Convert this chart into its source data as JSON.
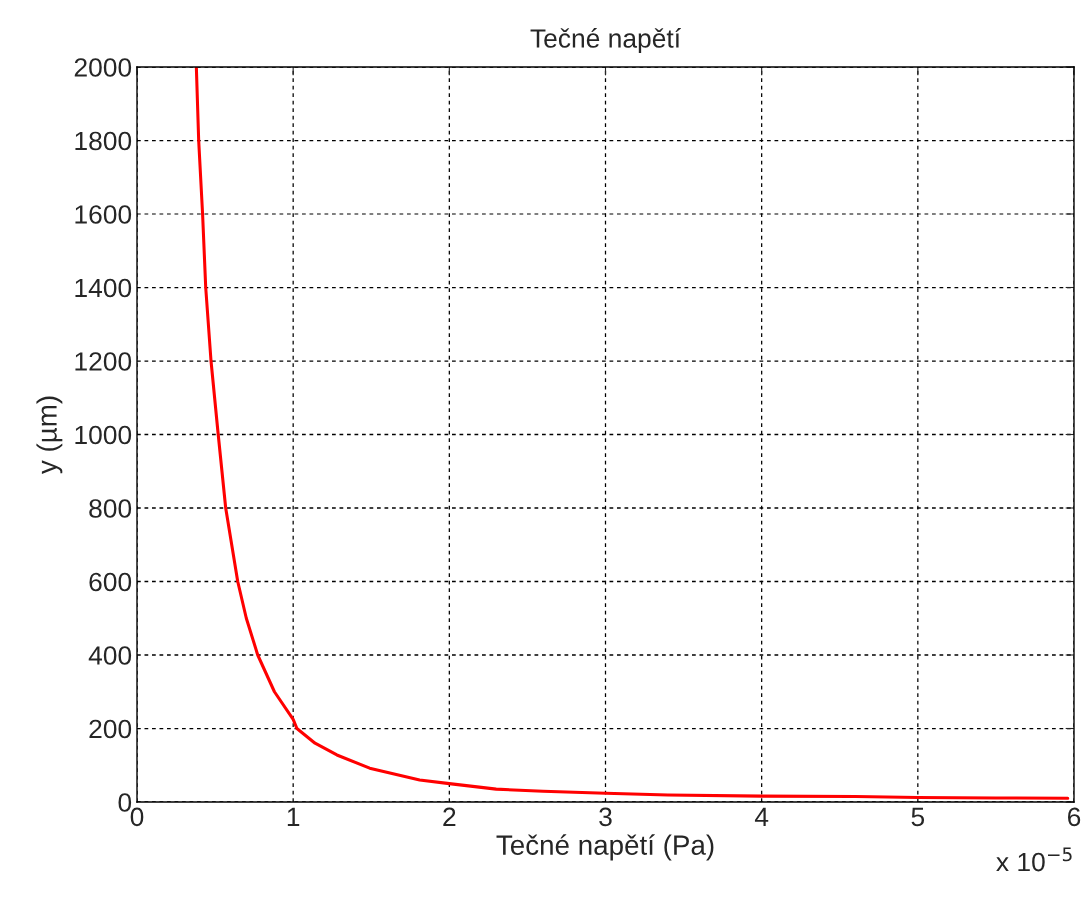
{
  "chart_data": {
    "type": "line",
    "title": "Tečné napětí",
    "xlabel": "Tečné napětí (Pa)",
    "ylabel": "y (µm)",
    "annotations": [
      "x 10$^{−5}$"
    ],
    "series": [
      {
        "color": "#ff0000",
        "x": [
          0.38,
          0.395,
          0.42,
          0.44,
          0.474,
          0.52,
          0.568,
          0.645,
          0.7,
          0.773,
          0.88,
          1.0,
          1.024,
          1.14,
          1.28,
          1.49,
          1.81,
          2.0,
          2.3,
          2.6,
          3.0,
          3.4,
          4.0,
          4.6,
          5.0,
          5.5,
          5.96
        ],
        "values": [
          2000,
          1800,
          1600,
          1400,
          1200,
          1000,
          800,
          600,
          500,
          400,
          300,
          225,
          200,
          160,
          128,
          92,
          60,
          50,
          35,
          29,
          24,
          19,
          16,
          15,
          12,
          11,
          10
        ]
      }
    ],
    "xlim": [
      0,
      6
    ],
    "xticks": [
      0,
      1,
      2,
      3,
      4,
      5,
      6
    ],
    "ylim": [
      0,
      2000
    ],
    "yticks": [
      0,
      200,
      400,
      600,
      800,
      1000,
      1200,
      1400,
      1600,
      1800,
      2000
    ],
    "grid": true,
    "line_style": "solid",
    "marker": "none"
  }
}
